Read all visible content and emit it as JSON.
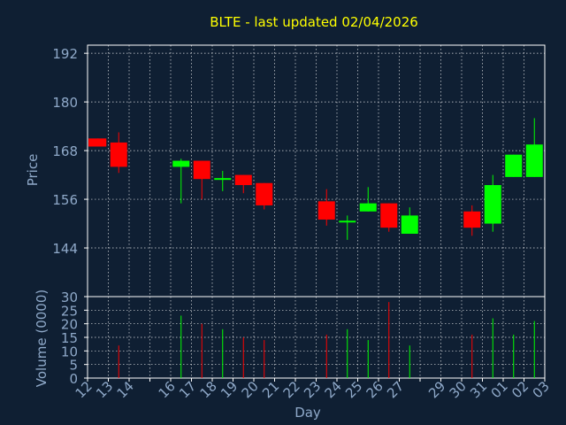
{
  "chart_data": {
    "type": "candlestick",
    "title": "BLTE - last updated 02/04/2026",
    "xlabel": "Day",
    "price_ylabel": "Price",
    "volume_ylabel": "Volume (0000)",
    "price_ylim": [
      132,
      194
    ],
    "price_yticks": [
      192,
      180,
      168,
      156,
      144
    ],
    "volume_ylim": [
      0,
      30
    ],
    "volume_yticks": [
      30,
      25,
      20,
      15,
      10,
      5,
      0
    ],
    "x_ticks": [
      "12",
      "13",
      "14",
      "15",
      "16",
      "17",
      "18",
      "19",
      "20",
      "21",
      "22",
      "23",
      "24",
      "25",
      "26",
      "27",
      "28",
      "29",
      "30",
      "31",
      "01",
      "02",
      "03"
    ],
    "x_tick_labels": [
      "12",
      "13",
      "14",
      "16",
      "17",
      "18",
      "19",
      "20",
      "21",
      "22",
      "23",
      "24",
      "25",
      "26",
      "27",
      "29",
      "30",
      "31",
      "01",
      "02",
      "03"
    ],
    "candles": [
      {
        "day": "12",
        "open": 171,
        "high": 171,
        "low": 169,
        "close": 169,
        "volume": 0
      },
      {
        "day": "13",
        "open": 170,
        "high": 172.5,
        "low": 162.5,
        "close": 164,
        "volume": 12
      },
      {
        "day": "16",
        "open": 164,
        "high": 166,
        "low": 155,
        "close": 165.5,
        "volume": 23
      },
      {
        "day": "17",
        "open": 165.5,
        "high": 165.5,
        "low": 156,
        "close": 161,
        "volume": 20
      },
      {
        "day": "18",
        "open": 161,
        "high": 163,
        "low": 158,
        "close": 161,
        "volume": 18
      },
      {
        "day": "19",
        "open": 162,
        "high": 162,
        "low": 157.5,
        "close": 159.5,
        "volume": 15
      },
      {
        "day": "20",
        "open": 160,
        "high": 160,
        "low": 153.5,
        "close": 154.5,
        "volume": 14
      },
      {
        "day": "23",
        "open": 155.5,
        "high": 158.5,
        "low": 149.5,
        "close": 151,
        "volume": 16
      },
      {
        "day": "24",
        "open": 150.5,
        "high": 152,
        "low": 146,
        "close": 150.5,
        "volume": 18
      },
      {
        "day": "25",
        "open": 153,
        "high": 159,
        "low": 153,
        "close": 155,
        "volume": 14
      },
      {
        "day": "26",
        "open": 155,
        "high": 155,
        "low": 148,
        "close": 149,
        "volume": 28
      },
      {
        "day": "27",
        "open": 147.5,
        "high": 154,
        "low": 147.5,
        "close": 152,
        "volume": 12
      },
      {
        "day": "30",
        "open": 153,
        "high": 154.5,
        "low": 147,
        "close": 149,
        "volume": 16
      },
      {
        "day": "31",
        "open": 150,
        "high": 162,
        "low": 148,
        "close": 159.5,
        "volume": 22
      },
      {
        "day": "01",
        "open": 161.5,
        "high": 167,
        "low": 161.5,
        "close": 167,
        "volume": 16
      },
      {
        "day": "02",
        "open": 161.5,
        "high": 176,
        "low": 161.5,
        "close": 169.5,
        "volume": 21
      }
    ],
    "grid": true,
    "colors": {
      "background": "#0f1f33",
      "title": "#ffff00",
      "axis_text": "#8fa9c9",
      "frame": "#ffffff",
      "grid": "#ffffff",
      "up": "#00ff00",
      "down": "#ff0000"
    }
  }
}
